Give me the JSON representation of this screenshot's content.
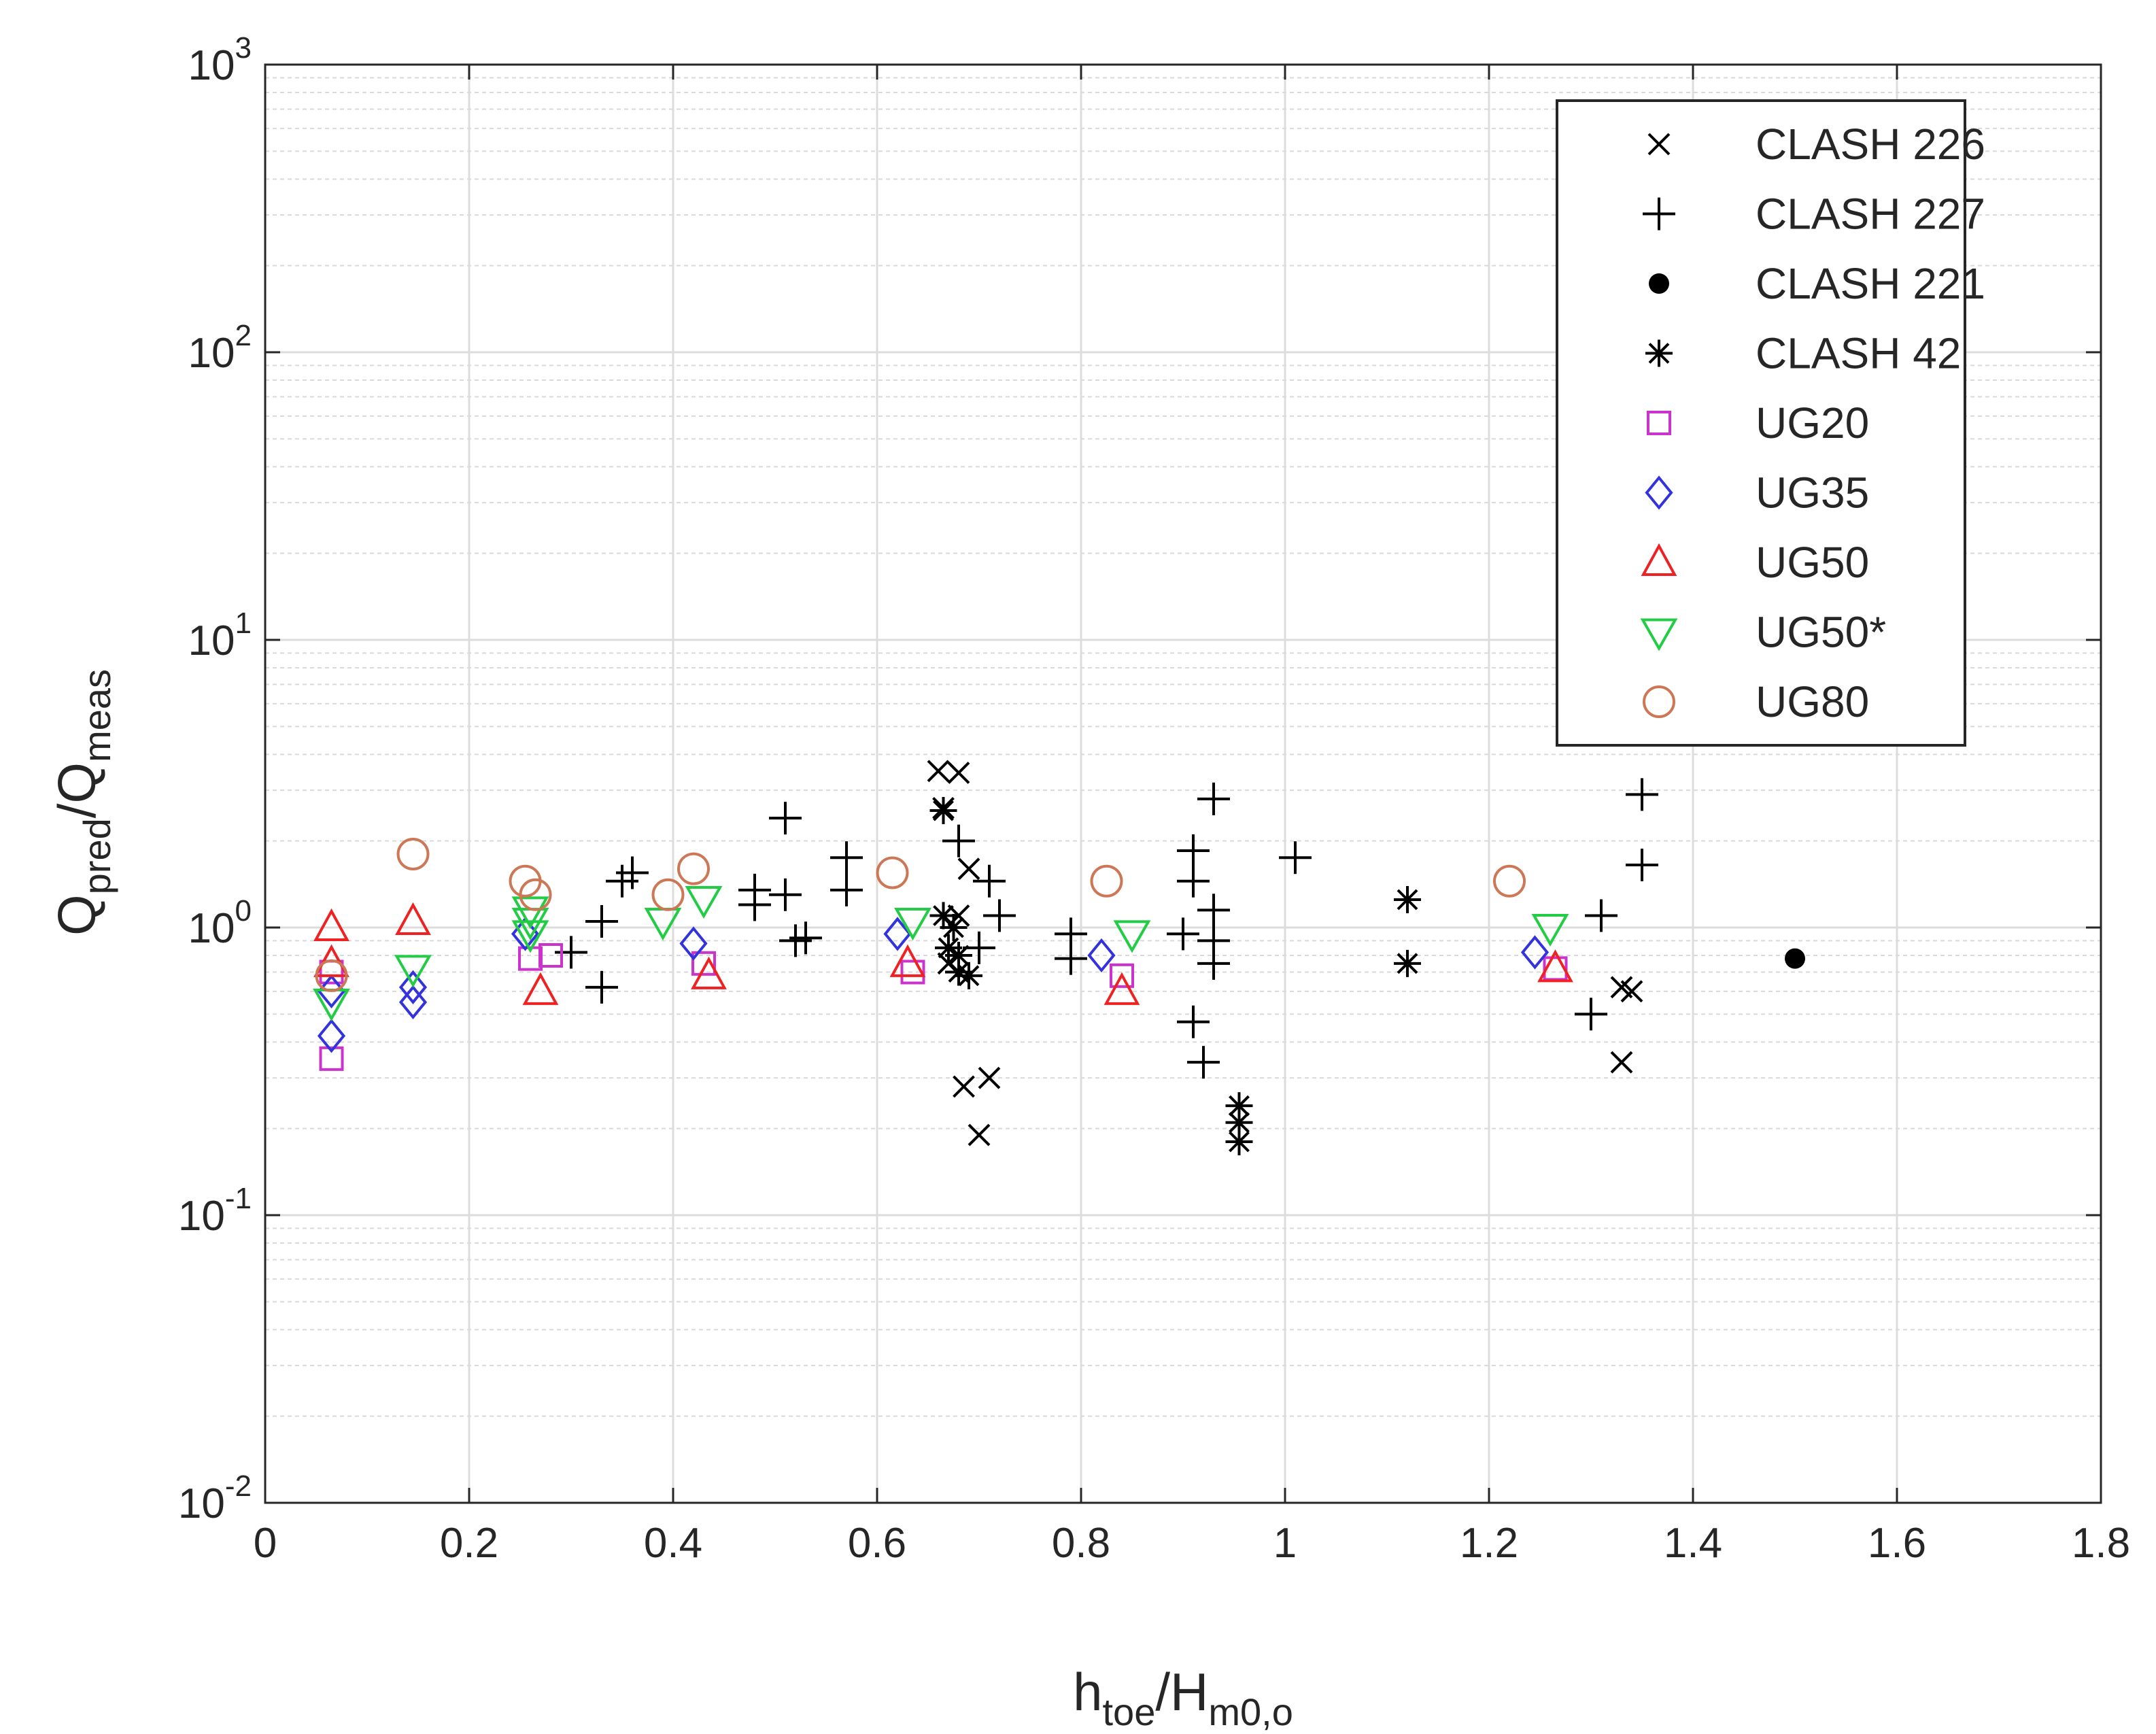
{
  "chart_data": {
    "type": "scatter",
    "title": "",
    "xlabel": {
      "base1": "h",
      "sub1": "toe",
      "slash": "/",
      "base2": "H",
      "sub2": "m0,o"
    },
    "ylabel": {
      "base1": "Q",
      "sub1": "pred",
      "slash": "/",
      "base2": "Q",
      "sub2": "meas"
    },
    "x_scale": "linear",
    "y_scale": "log",
    "xlim": [
      0,
      1.8
    ],
    "ylim": [
      0.01,
      1000
    ],
    "grid": true,
    "minor_grid_y": true,
    "legend_position": "top-right",
    "x_ticks": [
      {
        "value": 0,
        "label": "0"
      },
      {
        "value": 0.2,
        "label": "0.2"
      },
      {
        "value": 0.4,
        "label": "0.4"
      },
      {
        "value": 0.6,
        "label": "0.6"
      },
      {
        "value": 0.8,
        "label": "0.8"
      },
      {
        "value": 1.0,
        "label": "1"
      },
      {
        "value": 1.2,
        "label": "1.2"
      },
      {
        "value": 1.4,
        "label": "1.4"
      },
      {
        "value": 1.6,
        "label": "1.6"
      },
      {
        "value": 1.8,
        "label": "1.8"
      }
    ],
    "y_ticks": [
      {
        "value": 0.01,
        "base": "10",
        "exp": "-2"
      },
      {
        "value": 0.1,
        "base": "10",
        "exp": "-1"
      },
      {
        "value": 1,
        "base": "10",
        "exp": "0"
      },
      {
        "value": 10,
        "base": "10",
        "exp": "1"
      },
      {
        "value": 100,
        "base": "10",
        "exp": "2"
      },
      {
        "value": 1000,
        "base": "10",
        "exp": "3"
      }
    ],
    "series": [
      {
        "name": "CLASH 226",
        "marker": "x",
        "color": "#000000",
        "points": [
          [
            0.66,
            3.5
          ],
          [
            0.68,
            3.45
          ],
          [
            0.665,
            2.6
          ],
          [
            0.69,
            1.6
          ],
          [
            0.68,
            1.1
          ],
          [
            0.67,
            0.75
          ],
          [
            0.685,
            0.28
          ],
          [
            0.71,
            0.3
          ],
          [
            0.7,
            0.19
          ],
          [
            1.33,
            0.62
          ],
          [
            1.34,
            0.6
          ],
          [
            1.33,
            0.34
          ]
        ]
      },
      {
        "name": "CLASH 227",
        "marker": "+",
        "color": "#000000",
        "points": [
          [
            0.3,
            0.82
          ],
          [
            0.33,
            1.05
          ],
          [
            0.33,
            0.62
          ],
          [
            0.35,
            1.45
          ],
          [
            0.36,
            1.55
          ],
          [
            0.48,
            1.2
          ],
          [
            0.48,
            1.35
          ],
          [
            0.51,
            1.3
          ],
          [
            0.51,
            2.4
          ],
          [
            0.52,
            0.9
          ],
          [
            0.53,
            0.92
          ],
          [
            0.57,
            1.75
          ],
          [
            0.57,
            1.35
          ],
          [
            0.68,
            2.0
          ],
          [
            0.7,
            0.85
          ],
          [
            0.71,
            1.45
          ],
          [
            0.72,
            1.1
          ],
          [
            0.79,
            0.95
          ],
          [
            0.79,
            0.78
          ],
          [
            0.9,
            0.95
          ],
          [
            0.91,
            1.85
          ],
          [
            0.91,
            1.45
          ],
          [
            0.91,
            0.47
          ],
          [
            0.92,
            0.34
          ],
          [
            0.93,
            2.8
          ],
          [
            0.93,
            1.15
          ],
          [
            0.93,
            0.9
          ],
          [
            0.93,
            0.75
          ],
          [
            1.01,
            1.75
          ],
          [
            1.3,
            0.5
          ],
          [
            1.31,
            1.1
          ],
          [
            1.35,
            2.9
          ],
          [
            1.35,
            1.65
          ]
        ]
      },
      {
        "name": "CLASH 221",
        "marker": "dot",
        "color": "#000000",
        "points": [
          [
            1.5,
            0.78
          ]
        ]
      },
      {
        "name": "CLASH 42",
        "marker": "star",
        "color": "#000000",
        "points": [
          [
            0.665,
            2.55
          ],
          [
            0.665,
            1.1
          ],
          [
            0.675,
            1.0
          ],
          [
            0.67,
            0.85
          ],
          [
            0.68,
            0.8
          ],
          [
            0.68,
            0.7
          ],
          [
            0.69,
            0.68
          ],
          [
            0.955,
            0.24
          ],
          [
            0.955,
            0.21
          ],
          [
            0.955,
            0.18
          ],
          [
            1.12,
            1.25
          ],
          [
            1.12,
            0.75
          ]
        ]
      },
      {
        "name": "UG20",
        "marker": "square",
        "color": "#cc33cc",
        "points": [
          [
            0.065,
            0.35
          ],
          [
            0.065,
            0.7
          ],
          [
            0.26,
            0.78
          ],
          [
            0.28,
            0.8
          ],
          [
            0.43,
            0.75
          ],
          [
            0.635,
            0.7
          ],
          [
            0.84,
            0.68
          ],
          [
            1.265,
            0.72
          ]
        ]
      },
      {
        "name": "UG35",
        "marker": "diamond",
        "color": "#3333dd",
        "points": [
          [
            0.065,
            0.42
          ],
          [
            0.065,
            0.6
          ],
          [
            0.145,
            0.55
          ],
          [
            0.145,
            0.62
          ],
          [
            0.255,
            0.95
          ],
          [
            0.42,
            0.88
          ],
          [
            0.62,
            0.95
          ],
          [
            0.82,
            0.8
          ],
          [
            1.245,
            0.82
          ]
        ]
      },
      {
        "name": "UG50",
        "marker": "triangle-up",
        "color": "#ee2222",
        "points": [
          [
            0.065,
            1.0
          ],
          [
            0.065,
            0.75
          ],
          [
            0.145,
            1.05
          ],
          [
            0.27,
            0.6
          ],
          [
            0.435,
            0.68
          ],
          [
            0.63,
            0.75
          ],
          [
            0.84,
            0.6
          ],
          [
            1.265,
            0.72
          ]
        ]
      },
      {
        "name": "UG50*",
        "marker": "triangle-down",
        "color": "#22cc44",
        "points": [
          [
            0.065,
            0.55
          ],
          [
            0.145,
            0.72
          ],
          [
            0.26,
            1.15
          ],
          [
            0.26,
            1.05
          ],
          [
            0.26,
            0.95
          ],
          [
            0.39,
            1.05
          ],
          [
            0.43,
            1.25
          ],
          [
            0.635,
            1.05
          ],
          [
            0.85,
            0.95
          ],
          [
            1.26,
            1.0
          ]
        ]
      },
      {
        "name": "UG80",
        "marker": "circle",
        "color": "#cc7755",
        "points": [
          [
            0.065,
            0.68
          ],
          [
            0.145,
            1.8
          ],
          [
            0.255,
            1.45
          ],
          [
            0.265,
            1.3
          ],
          [
            0.395,
            1.3
          ],
          [
            0.42,
            1.6
          ],
          [
            0.615,
            1.55
          ],
          [
            0.825,
            1.45
          ],
          [
            1.22,
            1.45
          ]
        ]
      }
    ]
  }
}
